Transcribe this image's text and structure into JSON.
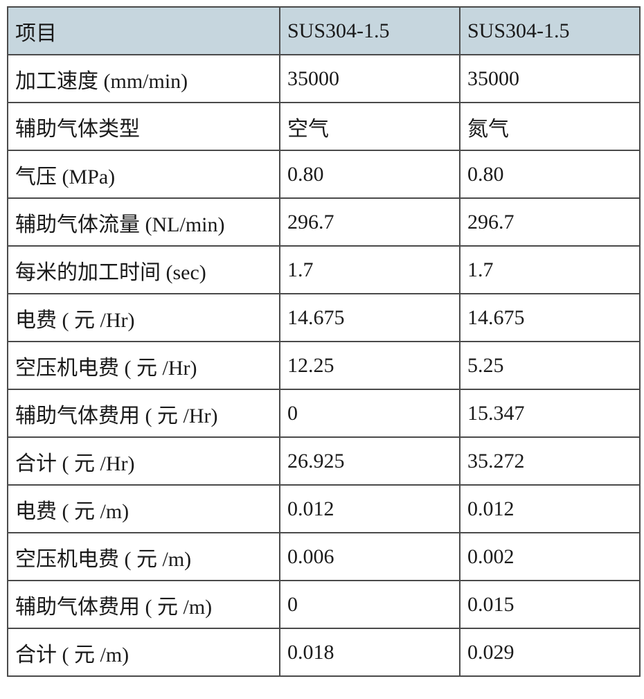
{
  "table": {
    "header": [
      "项目",
      "SUS304-1.5",
      "SUS304-1.5"
    ],
    "rows": [
      [
        "加工速度 (mm/min)",
        "35000",
        "35000"
      ],
      [
        "辅助气体类型",
        "空气",
        "氮气"
      ],
      [
        "气压 (MPa)",
        "0.80",
        "0.80"
      ],
      [
        "辅助气体流量 (NL/min)",
        "296.7",
        "296.7"
      ],
      [
        "每米的加工时间 (sec)",
        "1.7",
        "1.7"
      ],
      [
        "电费 ( 元 /Hr)",
        "14.675",
        "14.675"
      ],
      [
        "空压机电费 ( 元 /Hr)",
        "12.25",
        "5.25"
      ],
      [
        "辅助气体费用 ( 元 /Hr)",
        "0",
        "15.347"
      ],
      [
        "合计 ( 元 /Hr)",
        "26.925",
        "35.272"
      ],
      [
        "电费 ( 元 /m)",
        "0.012",
        "0.012"
      ],
      [
        "空压机电费 ( 元 /m)",
        "0.006",
        "0.002"
      ],
      [
        "辅助气体费用 ( 元 /m)",
        "0",
        "0.015"
      ],
      [
        "合计 ( 元 /m)",
        "0.018",
        "0.029"
      ]
    ]
  }
}
